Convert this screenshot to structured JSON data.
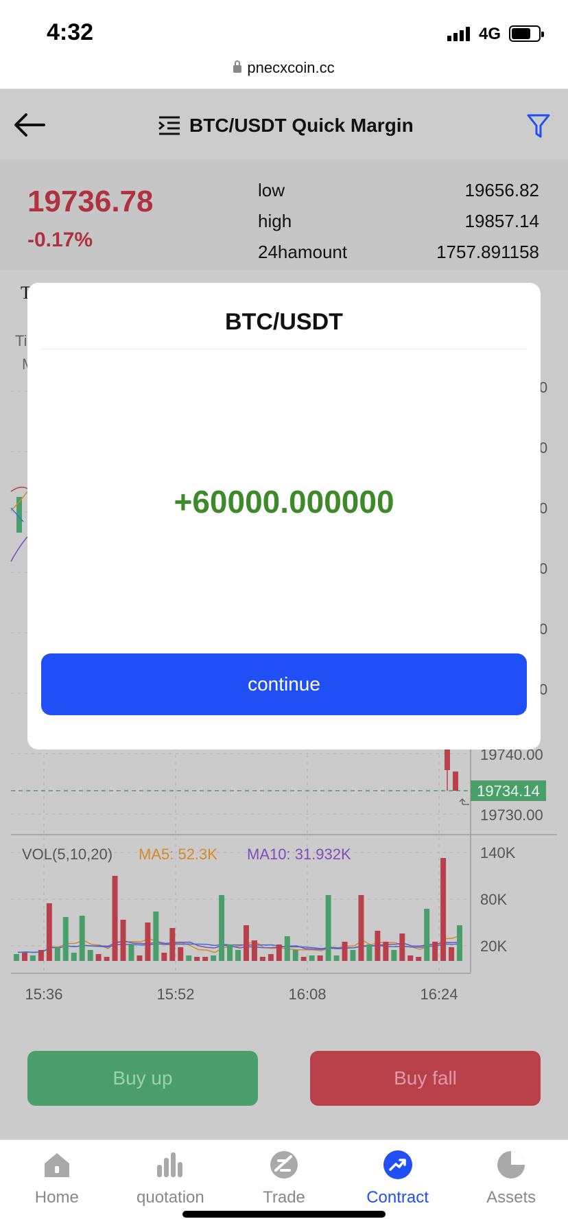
{
  "status": {
    "time": "4:32",
    "network": "4G"
  },
  "browser": {
    "url": "pnecxcoin.cc"
  },
  "header": {
    "title": "BTC/USDT Quick Margin"
  },
  "ticker": {
    "price": "19736.78",
    "change": "-0.17%",
    "stats": [
      {
        "label": "low",
        "value": "19656.82"
      },
      {
        "label": "high",
        "value": "19857.14"
      },
      {
        "label": "24hamount",
        "value": "1757.891158"
      }
    ]
  },
  "partial_labels": {
    "tab_char": "T",
    "ti": "Ti",
    "m": "M"
  },
  "chart": {
    "price_axis_partial": [
      "0",
      "0",
      "0",
      "0",
      "0",
      "0"
    ],
    "price_axis": [
      "19740.00",
      "19730.00"
    ],
    "current_price_tag": "19734.14",
    "vol_legend": "VOL(5,10,20)",
    "ma5": "MA5: 52.3K",
    "ma10": "MA10: 31.932K",
    "vol_axis": [
      "140K",
      "80K",
      "20K"
    ],
    "time_axis": [
      "15:36",
      "15:52",
      "16:08",
      "16:24"
    ],
    "colors": {
      "up": "#4a9e6a",
      "down": "#b8404b",
      "ma5": "#d7892a",
      "ma10": "#7a4fb8",
      "ma20": "#3b6fd8"
    },
    "volumes": [
      {
        "v": 5,
        "up": true
      },
      {
        "v": 6,
        "up": false
      },
      {
        "v": 4,
        "up": true
      },
      {
        "v": 8,
        "up": false
      },
      {
        "v": 42,
        "up": false
      },
      {
        "v": 10,
        "up": true
      },
      {
        "v": 32,
        "up": true
      },
      {
        "v": 6,
        "up": true
      },
      {
        "v": 33,
        "up": true
      },
      {
        "v": 8,
        "up": true
      },
      {
        "v": 5,
        "up": false
      },
      {
        "v": 3,
        "up": false
      },
      {
        "v": 62,
        "up": false
      },
      {
        "v": 30,
        "up": false
      },
      {
        "v": 12,
        "up": true
      },
      {
        "v": 4,
        "up": false
      },
      {
        "v": 28,
        "up": false
      },
      {
        "v": 36,
        "up": true
      },
      {
        "v": 6,
        "up": false
      },
      {
        "v": 24,
        "up": false
      },
      {
        "v": 10,
        "up": false
      },
      {
        "v": 4,
        "up": true
      },
      {
        "v": 3,
        "up": false
      },
      {
        "v": 3,
        "up": false
      },
      {
        "v": 4,
        "up": true
      },
      {
        "v": 48,
        "up": true
      },
      {
        "v": 12,
        "up": true
      },
      {
        "v": 8,
        "up": true
      },
      {
        "v": 26,
        "up": false
      },
      {
        "v": 15,
        "up": false
      },
      {
        "v": 3,
        "up": false
      },
      {
        "v": 5,
        "up": false
      },
      {
        "v": 12,
        "up": false
      },
      {
        "v": 18,
        "up": true
      },
      {
        "v": 8,
        "up": true
      },
      {
        "v": 3,
        "up": false
      },
      {
        "v": 4,
        "up": true
      },
      {
        "v": 4,
        "up": false
      },
      {
        "v": 48,
        "up": true
      },
      {
        "v": 4,
        "up": true
      },
      {
        "v": 14,
        "up": false
      },
      {
        "v": 8,
        "up": true
      },
      {
        "v": 48,
        "up": false
      },
      {
        "v": 12,
        "up": true
      },
      {
        "v": 22,
        "up": false
      },
      {
        "v": 14,
        "up": false
      },
      {
        "v": 8,
        "up": true
      },
      {
        "v": 20,
        "up": false
      },
      {
        "v": 4,
        "up": false
      },
      {
        "v": 3,
        "up": false
      },
      {
        "v": 38,
        "up": true
      },
      {
        "v": 14,
        "up": false
      },
      {
        "v": 75,
        "up": false
      },
      {
        "v": 10,
        "up": false
      },
      {
        "v": 26,
        "up": true
      }
    ]
  },
  "actions": {
    "buy_up": "Buy up",
    "buy_fall": "Buy fall"
  },
  "tabbar": [
    {
      "label": "Home",
      "icon": "home-icon"
    },
    {
      "label": "quotation",
      "icon": "bar-chart-icon"
    },
    {
      "label": "Trade",
      "icon": "trade-icon"
    },
    {
      "label": "Contract",
      "icon": "contract-trend-icon",
      "active": true
    },
    {
      "label": "Assets",
      "icon": "pie-chart-icon"
    }
  ],
  "modal": {
    "title": "BTC/USDT",
    "amount": "+60000.000000",
    "button": "continue"
  }
}
